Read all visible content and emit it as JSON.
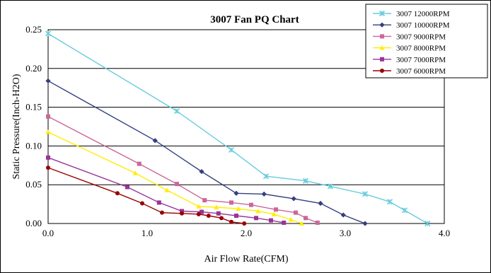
{
  "chart_data": {
    "type": "line",
    "title": "3007  Fan PQ Chart",
    "xlabel": "Air Flow Rate(CFM)",
    "ylabel": "Static Pressure(Inch-H2O)",
    "xlim": [
      0,
      4
    ],
    "ylim": [
      0,
      0.25
    ],
    "xticks": [
      0,
      1,
      2,
      3,
      4
    ],
    "xtick_labels": [
      "0.0",
      "1.0",
      "2.0",
      "3.0",
      "4.0"
    ],
    "yticks": [
      0,
      0.05,
      0.1,
      0.15,
      0.2,
      0.25
    ],
    "ytick_labels": [
      "0.00",
      "0.05",
      "0.10",
      "0.15",
      "0.20",
      "0.25"
    ],
    "grid": "horizontal",
    "legend_position": "top-right",
    "series": [
      {
        "name": "3007  12000RPM",
        "color": "#66CCDD",
        "marker": "x",
        "x": [
          0.0,
          1.3,
          1.85,
          2.2,
          2.6,
          2.85,
          3.2,
          3.45,
          3.6,
          3.83
        ],
        "y": [
          0.245,
          0.145,
          0.095,
          0.061,
          0.055,
          0.048,
          0.038,
          0.028,
          0.017,
          0.0
        ]
      },
      {
        "name": "3007  10000RPM",
        "color": "#333F7F",
        "marker": "diamond",
        "x": [
          0.0,
          1.08,
          1.55,
          1.9,
          2.18,
          2.48,
          2.75,
          2.98,
          3.2
        ],
        "y": [
          0.184,
          0.107,
          0.067,
          0.039,
          0.038,
          0.032,
          0.026,
          0.011,
          0.0
        ]
      },
      {
        "name": "3007  9000RPM",
        "color": "#CC6699",
        "marker": "square",
        "x": [
          0.0,
          0.92,
          1.3,
          1.58,
          1.85,
          2.05,
          2.3,
          2.5,
          2.6,
          2.72
        ],
        "y": [
          0.138,
          0.077,
          0.051,
          0.03,
          0.027,
          0.024,
          0.018,
          0.014,
          0.007,
          0.001
        ]
      },
      {
        "name": "3007  8000RPM",
        "color": "#FFEE00",
        "marker": "triangle",
        "x": [
          0.0,
          0.88,
          1.2,
          1.52,
          1.7,
          1.92,
          2.12,
          2.28,
          2.45,
          2.56
        ],
        "y": [
          0.118,
          0.065,
          0.043,
          0.022,
          0.021,
          0.019,
          0.016,
          0.012,
          0.005,
          0.0
        ]
      },
      {
        "name": "3007  7000RPM",
        "color": "#993399",
        "marker": "square",
        "x": [
          0.0,
          0.8,
          1.12,
          1.35,
          1.55,
          1.72,
          1.9,
          2.1,
          2.25,
          2.38
        ],
        "y": [
          0.085,
          0.047,
          0.027,
          0.016,
          0.015,
          0.013,
          0.01,
          0.007,
          0.004,
          0.001
        ]
      },
      {
        "name": "3007  6000RPM",
        "color": "#990000",
        "marker": "circle",
        "x": [
          0.0,
          0.7,
          0.95,
          1.15,
          1.35,
          1.52,
          1.62,
          1.75,
          1.85,
          1.98
        ],
        "y": [
          0.072,
          0.039,
          0.026,
          0.014,
          0.013,
          0.012,
          0.01,
          0.007,
          0.002,
          0.0
        ]
      }
    ]
  }
}
